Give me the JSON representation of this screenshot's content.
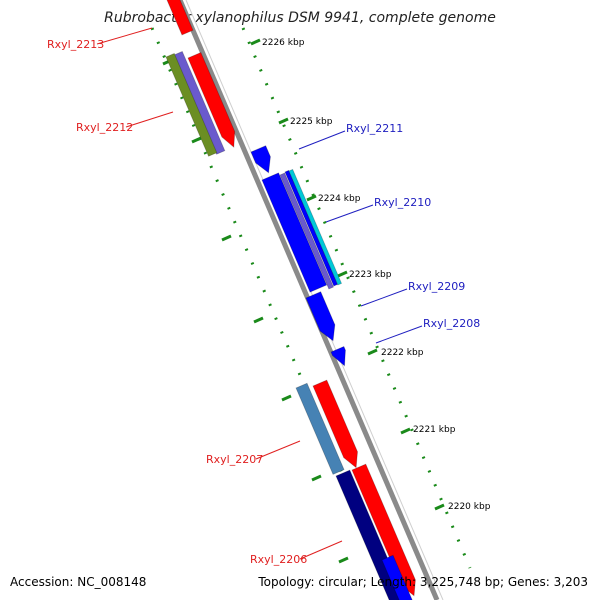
{
  "title": "Rubrobacter xylanophilus DSM 9941, complete genome",
  "accession_text": "Accession: NC_008148",
  "info_text": "Topology: circular; Length: 3,225,748 bp; Genes: 3,203",
  "ticks": [
    {
      "label": "2226 kbp"
    },
    {
      "label": "2225 kbp"
    },
    {
      "label": "2224 kbp"
    },
    {
      "label": "2223 kbp"
    },
    {
      "label": "2222 kbp"
    },
    {
      "label": "2221 kbp"
    },
    {
      "label": "2220 kbp"
    }
  ],
  "genes": [
    {
      "label": "Rxyl_2213",
      "color": "#e02020"
    },
    {
      "label": "Rxyl_2212",
      "color": "#e02020"
    },
    {
      "label": "Rxyl_2211",
      "color": "#2020c0"
    },
    {
      "label": "Rxyl_2210",
      "color": "#2020c0"
    },
    {
      "label": "Rxyl_2209",
      "color": "#2020c0"
    },
    {
      "label": "Rxyl_2208",
      "color": "#2020c0"
    },
    {
      "label": "Rxyl_2207",
      "color": "#e02020"
    },
    {
      "label": "Rxyl_2206",
      "color": "#e02020"
    }
  ],
  "colors": {
    "cds_forward": "#ff0000",
    "cds_reverse": "#0000ff",
    "backbone": "#8a8a8a",
    "gc_skew": "#1a8a1a",
    "olive_feature": "#6b8e23",
    "purple_feature": "#6a5acd",
    "steel_feature": "#4682b4",
    "navy_feature": "#000080",
    "cyan_feature": "#00c8d8"
  }
}
